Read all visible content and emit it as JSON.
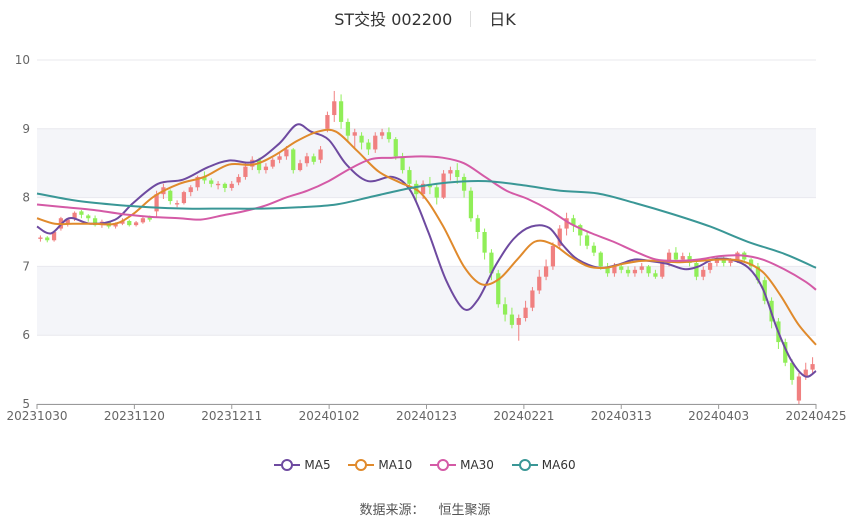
{
  "title": {
    "name": "ST交投 002200",
    "period": "日K"
  },
  "source": {
    "label": "数据来源：",
    "provider": "恒生聚源"
  },
  "chart_data": {
    "type": "candlestick",
    "ylim": [
      5,
      10
    ],
    "y_ticks": [
      "5",
      "6",
      "7",
      "8",
      "9",
      "10"
    ],
    "x_ticks": [
      "20231030",
      "20231120",
      "20231211",
      "20240102",
      "20240123",
      "20240221",
      "20240313",
      "20240403",
      "20240425"
    ],
    "colors": {
      "up": "#f08080",
      "down": "#90ee58",
      "grid": "#e8e8ee",
      "band": "#f4f5f9",
      "axis": "#9a9a9a"
    },
    "legend_position": "bottom",
    "candles": [
      [
        7.4,
        7.42,
        7.36,
        7.45
      ],
      [
        7.42,
        7.38,
        7.35,
        7.44
      ],
      [
        7.38,
        7.5,
        7.36,
        7.52
      ],
      [
        7.55,
        7.7,
        7.52,
        7.72
      ],
      [
        7.62,
        7.68,
        7.58,
        7.7
      ],
      [
        7.7,
        7.78,
        7.66,
        7.8
      ],
      [
        7.8,
        7.75,
        7.7,
        7.82
      ],
      [
        7.74,
        7.7,
        7.65,
        7.76
      ],
      [
        7.7,
        7.6,
        7.58,
        7.74
      ],
      [
        7.6,
        7.65,
        7.56,
        7.68
      ],
      [
        7.64,
        7.58,
        7.55,
        7.66
      ],
      [
        7.58,
        7.62,
        7.55,
        7.64
      ],
      [
        7.62,
        7.66,
        7.6,
        7.7
      ],
      [
        7.66,
        7.6,
        7.58,
        7.68
      ],
      [
        7.6,
        7.64,
        7.58,
        7.66
      ],
      [
        7.64,
        7.7,
        7.62,
        7.72
      ],
      [
        7.72,
        7.68,
        7.65,
        7.74
      ],
      [
        7.8,
        8.05,
        7.72,
        8.1
      ],
      [
        8.05,
        8.15,
        7.98,
        8.2
      ],
      [
        8.1,
        7.95,
        7.9,
        8.12
      ],
      [
        7.9,
        7.92,
        7.86,
        7.96
      ],
      [
        7.92,
        8.08,
        7.9,
        8.1
      ],
      [
        8.08,
        8.15,
        8.02,
        8.18
      ],
      [
        8.15,
        8.3,
        8.1,
        8.32
      ],
      [
        8.3,
        8.25,
        8.2,
        8.38
      ],
      [
        8.25,
        8.2,
        8.15,
        8.28
      ],
      [
        8.18,
        8.2,
        8.12,
        8.24
      ],
      [
        8.2,
        8.14,
        8.08,
        8.22
      ],
      [
        8.14,
        8.2,
        8.1,
        8.24
      ],
      [
        8.22,
        8.3,
        8.18,
        8.34
      ],
      [
        8.3,
        8.45,
        8.26,
        8.5
      ],
      [
        8.45,
        8.55,
        8.4,
        8.6
      ],
      [
        8.55,
        8.4,
        8.35,
        8.58
      ],
      [
        8.4,
        8.45,
        8.35,
        8.5
      ],
      [
        8.45,
        8.55,
        8.42,
        8.58
      ],
      [
        8.55,
        8.6,
        8.5,
        8.66
      ],
      [
        8.6,
        8.7,
        8.55,
        8.75
      ],
      [
        8.7,
        8.4,
        8.35,
        8.72
      ],
      [
        8.4,
        8.5,
        8.38,
        8.55
      ],
      [
        8.5,
        8.6,
        8.45,
        8.65
      ],
      [
        8.6,
        8.52,
        8.48,
        8.64
      ],
      [
        8.55,
        8.7,
        8.5,
        8.75
      ],
      [
        9.0,
        9.2,
        8.95,
        9.25
      ],
      [
        9.2,
        9.4,
        9.1,
        9.55
      ],
      [
        9.4,
        9.1,
        9.0,
        9.5
      ],
      [
        9.1,
        8.9,
        8.8,
        9.15
      ],
      [
        8.9,
        8.95,
        8.7,
        9.0
      ],
      [
        8.9,
        8.8,
        8.7,
        8.95
      ],
      [
        8.8,
        8.7,
        8.62,
        8.85
      ],
      [
        8.7,
        8.9,
        8.65,
        8.95
      ],
      [
        8.9,
        8.95,
        8.85,
        9.0
      ],
      [
        8.95,
        8.85,
        8.8,
        9.02
      ],
      [
        8.85,
        8.6,
        8.55,
        8.88
      ],
      [
        8.6,
        8.4,
        8.35,
        8.65
      ],
      [
        8.4,
        8.2,
        8.1,
        8.45
      ],
      [
        8.2,
        8.05,
        7.95,
        8.25
      ],
      [
        8.05,
        8.2,
        7.98,
        8.25
      ],
      [
        8.2,
        8.15,
        8.05,
        8.3
      ],
      [
        8.15,
        8.0,
        7.9,
        8.2
      ],
      [
        8.0,
        8.35,
        7.98,
        8.4
      ],
      [
        8.35,
        8.4,
        8.25,
        8.45
      ],
      [
        8.4,
        8.3,
        8.2,
        8.5
      ],
      [
        8.3,
        8.1,
        8.0,
        8.35
      ],
      [
        8.1,
        7.7,
        7.65,
        8.15
      ],
      [
        7.7,
        7.5,
        7.4,
        7.75
      ],
      [
        7.5,
        7.2,
        7.1,
        7.55
      ],
      [
        7.2,
        6.9,
        6.8,
        7.25
      ],
      [
        6.9,
        6.45,
        6.4,
        6.95
      ],
      [
        6.45,
        6.3,
        6.2,
        6.55
      ],
      [
        6.3,
        6.15,
        6.1,
        6.4
      ],
      [
        6.15,
        6.25,
        5.92,
        6.3
      ],
      [
        6.25,
        6.4,
        6.2,
        6.5
      ],
      [
        6.4,
        6.65,
        6.35,
        6.7
      ],
      [
        6.65,
        6.85,
        6.6,
        6.95
      ],
      [
        6.85,
        7.0,
        6.8,
        7.1
      ],
      [
        7.0,
        7.3,
        6.95,
        7.35
      ],
      [
        7.3,
        7.55,
        7.25,
        7.6
      ],
      [
        7.55,
        7.7,
        7.45,
        7.78
      ],
      [
        7.7,
        7.6,
        7.5,
        7.75
      ],
      [
        7.6,
        7.45,
        7.3,
        7.62
      ],
      [
        7.45,
        7.3,
        7.25,
        7.5
      ],
      [
        7.3,
        7.2,
        7.15,
        7.35
      ],
      [
        7.2,
        7.0,
        6.95,
        7.22
      ],
      [
        7.0,
        6.9,
        6.85,
        7.05
      ],
      [
        6.9,
        7.0,
        6.85,
        7.05
      ],
      [
        7.0,
        6.95,
        6.9,
        7.05
      ],
      [
        6.95,
        6.9,
        6.85,
        7.0
      ],
      [
        6.9,
        6.95,
        6.85,
        7.0
      ],
      [
        6.95,
        7.0,
        6.9,
        7.05
      ],
      [
        7.0,
        6.9,
        6.85,
        7.02
      ],
      [
        6.9,
        6.85,
        6.82,
        6.95
      ],
      [
        6.85,
        7.05,
        6.82,
        7.1
      ],
      [
        7.05,
        7.2,
        7.0,
        7.25
      ],
      [
        7.2,
        7.1,
        7.05,
        7.28
      ],
      [
        7.1,
        7.15,
        7.05,
        7.2
      ],
      [
        7.15,
        7.05,
        7.0,
        7.2
      ],
      [
        7.05,
        6.85,
        6.8,
        7.08
      ],
      [
        6.85,
        6.95,
        6.8,
        7.0
      ],
      [
        6.95,
        7.05,
        6.9,
        7.1
      ],
      [
        7.05,
        7.1,
        7.0,
        7.15
      ],
      [
        7.1,
        7.05,
        7.0,
        7.15
      ],
      [
        7.05,
        7.1,
        7.0,
        7.12
      ],
      [
        7.1,
        7.2,
        7.05,
        7.22
      ],
      [
        7.2,
        7.1,
        7.05,
        7.22
      ],
      [
        7.1,
        7.0,
        6.95,
        7.12
      ],
      [
        7.0,
        6.8,
        6.75,
        7.05
      ],
      [
        6.8,
        6.5,
        6.45,
        6.85
      ],
      [
        6.5,
        6.2,
        6.1,
        6.55
      ],
      [
        6.2,
        5.9,
        5.8,
        6.25
      ],
      [
        5.9,
        5.6,
        5.55,
        5.95
      ],
      [
        5.6,
        5.35,
        5.28,
        5.65
      ],
      [
        5.05,
        5.4,
        5.0,
        5.45
      ],
      [
        5.4,
        5.5,
        5.35,
        5.6
      ],
      [
        5.5,
        5.58,
        5.45,
        5.68
      ]
    ],
    "series": [
      {
        "name": "MA5",
        "color": "#6e4aa0",
        "values": [
          [
            0,
            7.58
          ],
          [
            4,
            7.48
          ],
          [
            9,
            7.7
          ],
          [
            15,
            7.62
          ],
          [
            22,
            7.68
          ],
          [
            27,
            7.92
          ],
          [
            34,
            8.2
          ],
          [
            41,
            8.26
          ],
          [
            48,
            8.44
          ],
          [
            54,
            8.54
          ],
          [
            61,
            8.52
          ],
          [
            68,
            8.78
          ],
          [
            73,
            9.06
          ],
          [
            77,
            8.96
          ],
          [
            82,
            8.84
          ],
          [
            87,
            8.48
          ],
          [
            93,
            8.24
          ],
          [
            100,
            8.3
          ],
          [
            105,
            8.1
          ],
          [
            110,
            7.5
          ],
          [
            115,
            6.8
          ],
          [
            120,
            6.38
          ],
          [
            124,
            6.52
          ],
          [
            129,
            7.02
          ],
          [
            134,
            7.4
          ],
          [
            139,
            7.58
          ],
          [
            144,
            7.56
          ],
          [
            148,
            7.3
          ],
          [
            152,
            7.1
          ],
          [
            158,
            6.98
          ],
          [
            163,
            7.02
          ],
          [
            168,
            7.1
          ],
          [
            172,
            7.08
          ],
          [
            177,
            7.04
          ],
          [
            182,
            6.96
          ],
          [
            186,
            7.0
          ],
          [
            190,
            7.1
          ],
          [
            195,
            7.1
          ],
          [
            200,
            6.98
          ],
          [
            204,
            6.68
          ],
          [
            208,
            6.1
          ],
          [
            212,
            5.64
          ],
          [
            216,
            5.4
          ],
          [
            219,
            5.48
          ]
        ]
      },
      {
        "name": "MA10",
        "color": "#e08a2c",
        "values": [
          [
            0,
            7.7
          ],
          [
            5,
            7.62
          ],
          [
            10,
            7.62
          ],
          [
            16,
            7.62
          ],
          [
            22,
            7.62
          ],
          [
            27,
            7.76
          ],
          [
            33,
            8.02
          ],
          [
            40,
            8.2
          ],
          [
            47,
            8.3
          ],
          [
            54,
            8.48
          ],
          [
            61,
            8.48
          ],
          [
            67,
            8.62
          ],
          [
            73,
            8.82
          ],
          [
            79,
            8.96
          ],
          [
            84,
            8.96
          ],
          [
            90,
            8.68
          ],
          [
            96,
            8.38
          ],
          [
            102,
            8.22
          ],
          [
            108,
            8.06
          ],
          [
            114,
            7.6
          ],
          [
            120,
            7.0
          ],
          [
            125,
            6.74
          ],
          [
            130,
            6.82
          ],
          [
            135,
            7.1
          ],
          [
            140,
            7.36
          ],
          [
            145,
            7.32
          ],
          [
            150,
            7.14
          ],
          [
            155,
            7.0
          ],
          [
            160,
            6.98
          ],
          [
            165,
            7.04
          ],
          [
            170,
            7.08
          ],
          [
            175,
            7.08
          ],
          [
            180,
            7.06
          ],
          [
            186,
            7.08
          ],
          [
            192,
            7.1
          ],
          [
            198,
            7.08
          ],
          [
            204,
            6.92
          ],
          [
            209,
            6.58
          ],
          [
            214,
            6.16
          ],
          [
            219,
            5.86
          ]
        ]
      },
      {
        "name": "MA30",
        "color": "#d45aa6",
        "values": [
          [
            0,
            7.9
          ],
          [
            8,
            7.86
          ],
          [
            16,
            7.82
          ],
          [
            24,
            7.76
          ],
          [
            32,
            7.72
          ],
          [
            40,
            7.7
          ],
          [
            46,
            7.68
          ],
          [
            52,
            7.74
          ],
          [
            58,
            7.8
          ],
          [
            64,
            7.88
          ],
          [
            70,
            8.0
          ],
          [
            76,
            8.1
          ],
          [
            82,
            8.24
          ],
          [
            88,
            8.42
          ],
          [
            94,
            8.56
          ],
          [
            100,
            8.58
          ],
          [
            108,
            8.6
          ],
          [
            114,
            8.58
          ],
          [
            120,
            8.5
          ],
          [
            126,
            8.3
          ],
          [
            132,
            8.1
          ],
          [
            138,
            7.98
          ],
          [
            144,
            7.82
          ],
          [
            150,
            7.62
          ],
          [
            156,
            7.48
          ],
          [
            162,
            7.36
          ],
          [
            168,
            7.22
          ],
          [
            174,
            7.1
          ],
          [
            180,
            7.08
          ],
          [
            186,
            7.1
          ],
          [
            192,
            7.15
          ],
          [
            198,
            7.16
          ],
          [
            204,
            7.1
          ],
          [
            210,
            6.96
          ],
          [
            216,
            6.78
          ],
          [
            219,
            6.66
          ]
        ]
      },
      {
        "name": "MA60",
        "color": "#3a9796",
        "values": [
          [
            0,
            8.06
          ],
          [
            12,
            7.96
          ],
          [
            24,
            7.9
          ],
          [
            36,
            7.86
          ],
          [
            48,
            7.84
          ],
          [
            60,
            7.84
          ],
          [
            72,
            7.84
          ],
          [
            84,
            7.86
          ],
          [
            96,
            7.9
          ],
          [
            108,
            8.02
          ],
          [
            120,
            8.14
          ],
          [
            132,
            8.22
          ],
          [
            144,
            8.24
          ],
          [
            156,
            8.18
          ],
          [
            168,
            8.1
          ],
          [
            180,
            8.06
          ],
          [
            192,
            7.92
          ],
          [
            204,
            7.76
          ],
          [
            216,
            7.58
          ],
          [
            228,
            7.36
          ],
          [
            240,
            7.18
          ],
          [
            250,
            6.98
          ]
        ]
      }
    ]
  }
}
